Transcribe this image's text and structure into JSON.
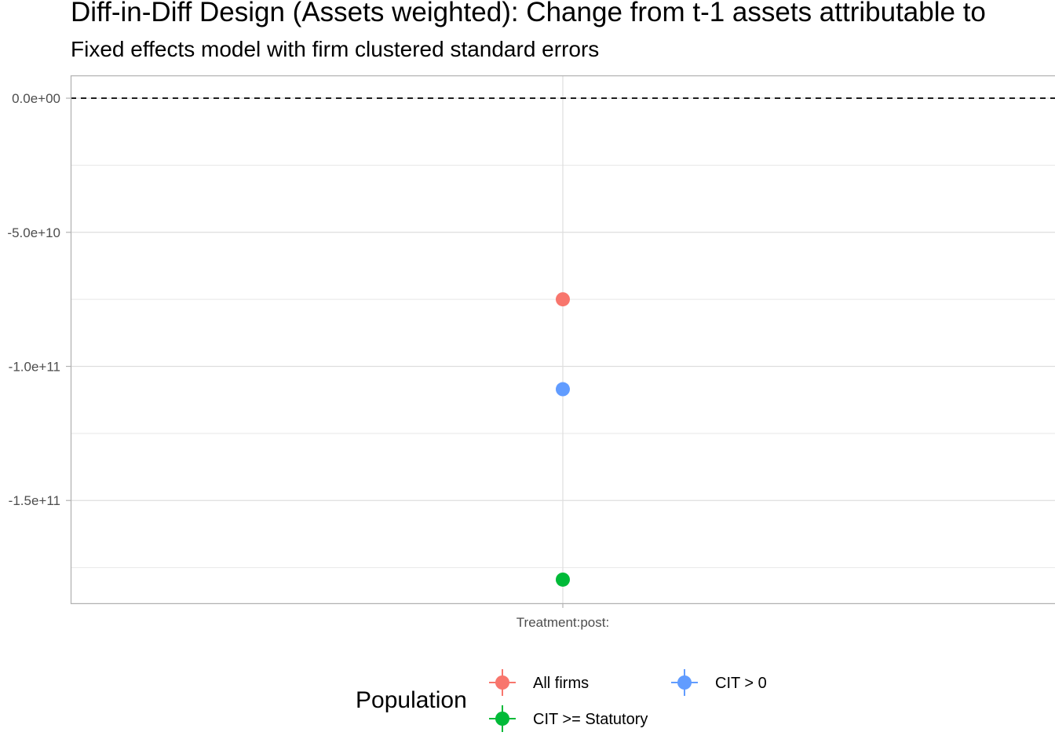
{
  "chart_data": {
    "type": "scatter",
    "title": "Diff-in-Diff Design (Assets weighted): Change from t-1 assets attributable to",
    "subtitle": "Fixed effects model with firm clustered standard errors",
    "xlabel": "",
    "ylabel": "",
    "categories": [
      "Treatment:post:"
    ],
    "ylim": [
      -188300000000.0,
      8500000000.0
    ],
    "y_ticks": [
      0,
      -50000000000.0,
      -100000000000.0,
      -150000000000.0
    ],
    "y_tick_labels": [
      "0.0e+00",
      "-5.0e+10",
      "-1.0e+11",
      "-1.5e+11"
    ],
    "reference_line": {
      "y": 0,
      "style": "dashed"
    },
    "grid": true,
    "legend": {
      "title": "Population",
      "position": "bottom"
    },
    "series": [
      {
        "name": "All firms",
        "color": "#F8766D",
        "values": [
          -75000000000.0
        ]
      },
      {
        "name": "CIT > 0",
        "color": "#619CFF",
        "values": [
          -108500000000.0
        ]
      },
      {
        "name": "CIT >= Statutory",
        "color": "#00BA38",
        "values": [
          -179500000000.0
        ]
      }
    ],
    "legend_layout": [
      {
        "series": 0,
        "col": 0,
        "row": 0
      },
      {
        "series": 1,
        "col": 1,
        "row": 0
      },
      {
        "series": 2,
        "col": 0,
        "row": 1
      }
    ]
  }
}
